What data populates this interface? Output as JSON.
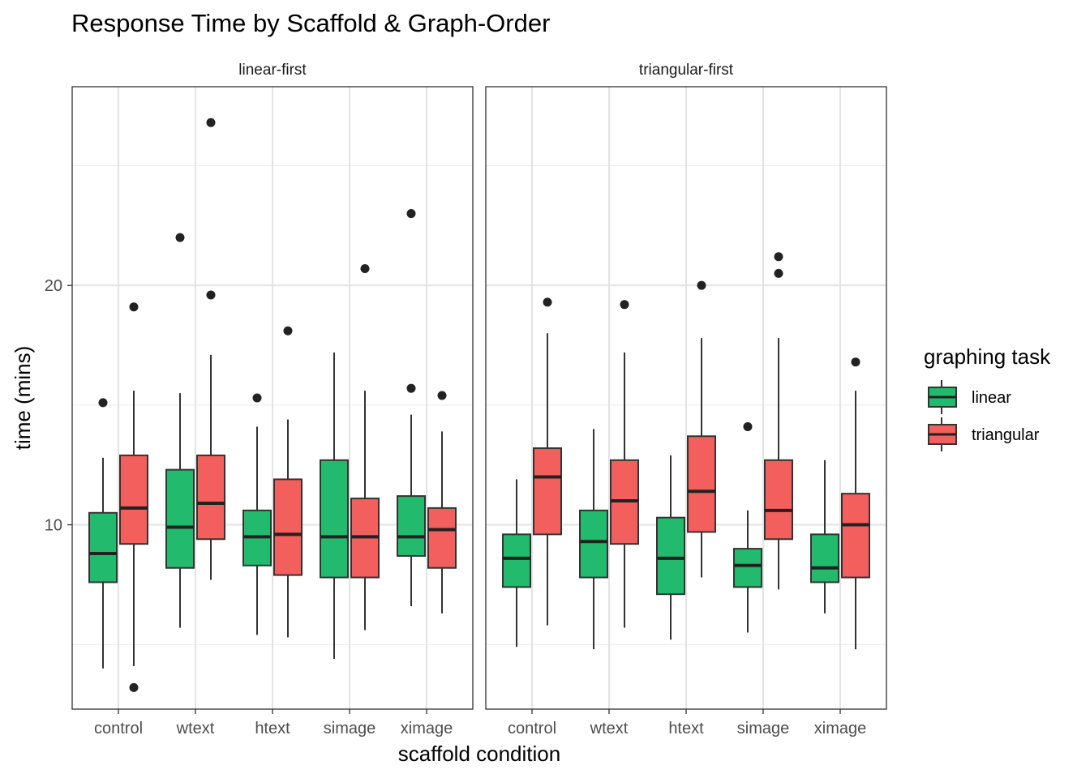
{
  "chart_data": {
    "type": "box",
    "title": "Response Time by Scaffold & Graph-Order",
    "xlabel": "scaffold condition",
    "ylabel": "time (mins)",
    "ylim": [
      2.3,
      28.3
    ],
    "yticks": [
      10,
      20
    ],
    "categories": [
      "control",
      "wtext",
      "htext",
      "simage",
      "ximage"
    ],
    "legend": {
      "title": "graphing task",
      "position": "right",
      "entries": [
        "linear",
        "triangular"
      ]
    },
    "colors": {
      "linear": "#22bb6e",
      "triangular": "#f25f5c"
    },
    "grid": true,
    "panels": [
      {
        "name": "linear-first",
        "boxes": [
          {
            "category": "control",
            "series": "linear",
            "low": 4.0,
            "q1": 7.6,
            "median": 8.8,
            "q3": 10.5,
            "high": 12.8,
            "outliers": [
              15.1
            ]
          },
          {
            "category": "control",
            "series": "triangular",
            "low": 4.1,
            "q1": 9.2,
            "median": 10.7,
            "q3": 12.9,
            "high": 15.6,
            "outliers": [
              19.1,
              3.2
            ]
          },
          {
            "category": "wtext",
            "series": "linear",
            "low": 5.7,
            "q1": 8.2,
            "median": 9.9,
            "q3": 12.3,
            "high": 15.5,
            "outliers": [
              22.0
            ]
          },
          {
            "category": "wtext",
            "series": "triangular",
            "low": 7.7,
            "q1": 9.4,
            "median": 10.9,
            "q3": 12.9,
            "high": 17.1,
            "outliers": [
              26.8,
              19.6
            ]
          },
          {
            "category": "htext",
            "series": "linear",
            "low": 5.4,
            "q1": 8.3,
            "median": 9.5,
            "q3": 10.6,
            "high": 14.1,
            "outliers": [
              15.3
            ]
          },
          {
            "category": "htext",
            "series": "triangular",
            "low": 5.3,
            "q1": 7.9,
            "median": 9.6,
            "q3": 11.9,
            "high": 14.4,
            "outliers": [
              18.1
            ]
          },
          {
            "category": "simage",
            "series": "linear",
            "low": 4.4,
            "q1": 7.8,
            "median": 9.5,
            "q3": 12.7,
            "high": 17.2,
            "outliers": []
          },
          {
            "category": "simage",
            "series": "triangular",
            "low": 5.6,
            "q1": 7.8,
            "median": 9.5,
            "q3": 11.1,
            "high": 15.6,
            "outliers": [
              20.7
            ]
          },
          {
            "category": "ximage",
            "series": "linear",
            "low": 6.6,
            "q1": 8.7,
            "median": 9.5,
            "q3": 11.2,
            "high": 14.6,
            "outliers": [
              23.0,
              15.7
            ]
          },
          {
            "category": "ximage",
            "series": "triangular",
            "low": 6.3,
            "q1": 8.2,
            "median": 9.8,
            "q3": 10.7,
            "high": 13.9,
            "outliers": [
              15.4
            ]
          }
        ]
      },
      {
        "name": "triangular-first",
        "boxes": [
          {
            "category": "control",
            "series": "linear",
            "low": 4.9,
            "q1": 7.4,
            "median": 8.6,
            "q3": 9.6,
            "high": 11.9,
            "outliers": []
          },
          {
            "category": "control",
            "series": "triangular",
            "low": 5.8,
            "q1": 9.6,
            "median": 12.0,
            "q3": 13.2,
            "high": 18.0,
            "outliers": [
              19.3
            ]
          },
          {
            "category": "wtext",
            "series": "linear",
            "low": 4.8,
            "q1": 7.8,
            "median": 9.3,
            "q3": 10.6,
            "high": 14.0,
            "outliers": []
          },
          {
            "category": "wtext",
            "series": "triangular",
            "low": 5.7,
            "q1": 9.2,
            "median": 11.0,
            "q3": 12.7,
            "high": 17.2,
            "outliers": [
              19.2
            ]
          },
          {
            "category": "htext",
            "series": "linear",
            "low": 5.2,
            "q1": 7.1,
            "median": 8.6,
            "q3": 10.3,
            "high": 12.9,
            "outliers": []
          },
          {
            "category": "htext",
            "series": "triangular",
            "low": 7.8,
            "q1": 9.7,
            "median": 11.4,
            "q3": 13.7,
            "high": 17.8,
            "outliers": [
              20.0
            ]
          },
          {
            "category": "simage",
            "series": "linear",
            "low": 5.5,
            "q1": 7.4,
            "median": 8.3,
            "q3": 9.0,
            "high": 10.6,
            "outliers": [
              14.1
            ]
          },
          {
            "category": "simage",
            "series": "triangular",
            "low": 7.3,
            "q1": 9.4,
            "median": 10.6,
            "q3": 12.7,
            "high": 17.8,
            "outliers": [
              21.2,
              20.5
            ]
          },
          {
            "category": "ximage",
            "series": "linear",
            "low": 6.3,
            "q1": 7.6,
            "median": 8.2,
            "q3": 9.6,
            "high": 12.7,
            "outliers": []
          },
          {
            "category": "ximage",
            "series": "triangular",
            "low": 4.8,
            "q1": 7.8,
            "median": 10.0,
            "q3": 11.3,
            "high": 15.6,
            "outliers": [
              16.8
            ]
          }
        ]
      }
    ]
  }
}
